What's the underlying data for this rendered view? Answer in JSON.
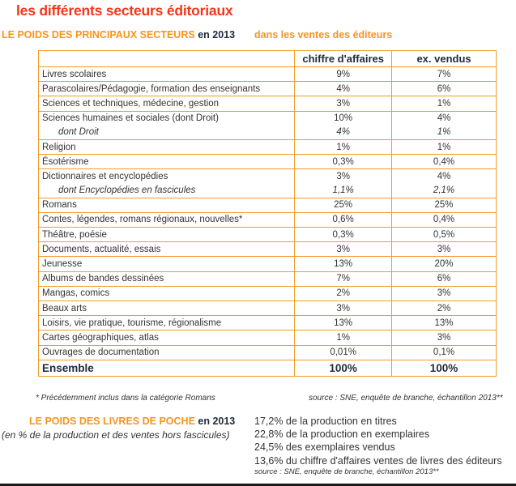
{
  "title": "les différents secteurs éditoriaux",
  "subtitle": {
    "main": "LE POIDS DES PRINCIPAUX SECTEURS",
    "year": "en 2013",
    "right": "dans les ventes des éditeurs"
  },
  "table": {
    "headers": [
      "",
      "chiffre d'affaires",
      "ex. vendus"
    ],
    "rows": [
      {
        "label": "Livres scolaires",
        "ca": "9%",
        "ex": "7%"
      },
      {
        "label": "Parascolaires/Pédagogie, formation des enseignants",
        "ca": "4%",
        "ex": "6%"
      },
      {
        "label": "Sciences et techniques, médecine, gestion",
        "ca": "3%",
        "ex": "1%"
      },
      {
        "label": "Sciences humaines et sociales (dont Droit)",
        "ca": "10%",
        "ex": "4%"
      },
      {
        "label": "dont Droit",
        "ca": "4%",
        "ex": "1%"
      },
      {
        "label": "Religion",
        "ca": "1%",
        "ex": "1%"
      },
      {
        "label": "Ésotérisme",
        "ca": "0,3%",
        "ex": "0,4%"
      },
      {
        "label": "Dictionnaires et encyclopédies",
        "ca": "3%",
        "ex": "4%"
      },
      {
        "label": "dont Encyclopédies en fascicules",
        "ca": "1,1%",
        "ex": "2,1%"
      },
      {
        "label": "Romans",
        "ca": "25%",
        "ex": "25%"
      },
      {
        "label": "Contes, légendes, romans régionaux, nouvelles*",
        "ca": "0,6%",
        "ex": "0,4%"
      },
      {
        "label": "Théâtre, poésie",
        "ca": "0,3%",
        "ex": "0,5%"
      },
      {
        "label": "Documents, actualité, essais",
        "ca": "3%",
        "ex": "3%"
      },
      {
        "label": "Jeunesse",
        "ca": "13%",
        "ex": "20%"
      },
      {
        "label": "Albums de bandes dessinées",
        "ca": "7%",
        "ex": "6%"
      },
      {
        "label": "Mangas, comics",
        "ca": "2%",
        "ex": "3%"
      },
      {
        "label": "Beaux arts",
        "ca": "3%",
        "ex": "2%"
      },
      {
        "label": "Loisirs, vie pratique, tourisme, régionalisme",
        "ca": "13%",
        "ex": "13%"
      },
      {
        "label": "Cartes géographiques, atlas",
        "ca": "1%",
        "ex": "3%"
      },
      {
        "label": "Ouvrages de documentation",
        "ca": "0,01%",
        "ex": "0,1%"
      }
    ],
    "total": {
      "label": "Ensemble",
      "ca": "100%",
      "ex": "100%"
    }
  },
  "footnote": "* Précédemment inclus dans la catégorie Romans",
  "source1": "source : SNE, enquête de branche, échantillon 2013**",
  "poche": {
    "title": "LE POIDS DES LIVRES DE POCHE",
    "year": "en 2013",
    "subtitle": "(en % de la production et des ventes hors fascicules)",
    "items": [
      "17,2% de la production en titres",
      "22,8% de la production en exemplaires",
      "24,5% des exemplaires vendus",
      "13,6% du chiffre d'affaires ventes de livres des éditeurs"
    ],
    "source": "source : SNE, enquête de branche, échantillon 2013**"
  },
  "colors": {
    "title": "#f4361c",
    "accent": "#f7941d",
    "border": "#f39a2a"
  }
}
